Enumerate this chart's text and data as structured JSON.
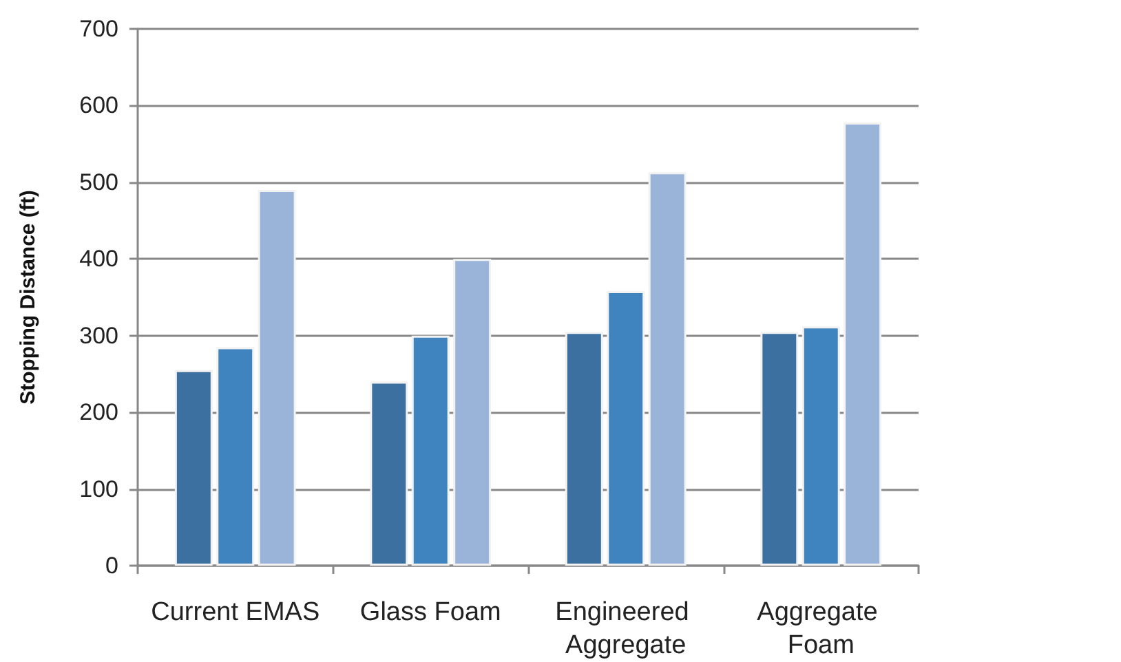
{
  "chart_data": {
    "type": "bar",
    "ylabel": "Stopping Distance (ft)",
    "categories": [
      "Current EMAS",
      "Glass Foam",
      "Engineered Aggregate",
      "Aggregate Foam"
    ],
    "series": [
      {
        "color": "#3b70a0",
        "values": [
          255,
          240,
          305,
          305
        ]
      },
      {
        "color": "#3f84bf",
        "values": [
          285,
          300,
          358,
          312
        ]
      },
      {
        "color": "#9ab3d8",
        "values": [
          490,
          400,
          513,
          578
        ]
      }
    ],
    "ylim": [
      0,
      700
    ],
    "yticks": [
      0,
      100,
      200,
      300,
      400,
      500,
      600,
      700
    ],
    "grid": "y"
  }
}
